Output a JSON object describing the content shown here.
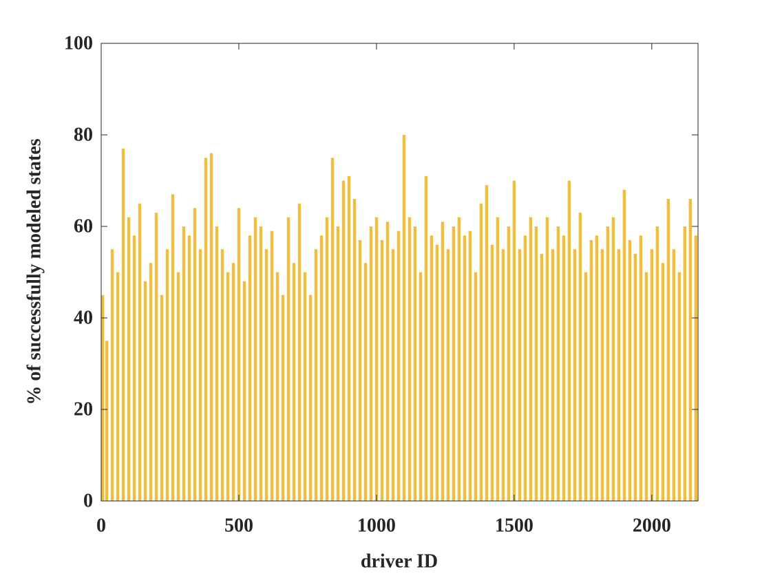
{
  "chart_data": {
    "type": "bar",
    "xlabel": "driver ID",
    "ylabel": "% of successfully modeled states",
    "x": [
      0,
      20,
      40,
      60,
      80,
      100,
      120,
      140,
      160,
      180,
      200,
      220,
      240,
      260,
      280,
      300,
      320,
      340,
      360,
      380,
      400,
      420,
      440,
      460,
      480,
      500,
      520,
      540,
      560,
      580,
      600,
      620,
      640,
      660,
      680,
      700,
      720,
      740,
      760,
      780,
      800,
      820,
      840,
      860,
      880,
      900,
      920,
      940,
      960,
      980,
      1000,
      1020,
      1040,
      1060,
      1080,
      1100,
      1120,
      1140,
      1160,
      1180,
      1200,
      1220,
      1240,
      1260,
      1280,
      1300,
      1320,
      1340,
      1360,
      1380,
      1400,
      1420,
      1440,
      1460,
      1480,
      1500,
      1520,
      1540,
      1560,
      1580,
      1600,
      1620,
      1640,
      1660,
      1680,
      1700,
      1720,
      1740,
      1760,
      1780,
      1800,
      1820,
      1840,
      1860,
      1880,
      1900,
      1920,
      1940,
      1960,
      1980,
      2000,
      2020,
      2040,
      2060,
      2080,
      2100,
      2120,
      2140,
      2160
    ],
    "values": [
      45,
      35,
      55,
      50,
      77,
      62,
      58,
      65,
      48,
      52,
      63,
      45,
      55,
      67,
      50,
      60,
      58,
      64,
      55,
      75,
      76,
      60,
      55,
      50,
      52,
      64,
      48,
      58,
      62,
      60,
      55,
      59,
      50,
      45,
      62,
      52,
      65,
      50,
      45,
      55,
      58,
      62,
      75,
      60,
      70,
      71,
      66,
      57,
      52,
      60,
      62,
      57,
      61,
      55,
      59,
      80,
      62,
      60,
      50,
      71,
      58,
      56,
      61,
      55,
      60,
      62,
      58,
      59,
      50,
      65,
      69,
      56,
      62,
      55,
      60,
      70,
      55,
      58,
      62,
      60,
      54,
      62,
      55,
      60,
      58,
      70,
      55,
      63,
      50,
      57,
      58,
      55,
      60,
      62,
      55,
      68,
      57,
      54,
      58,
      50,
      55,
      60,
      52,
      66,
      55,
      50,
      60,
      66,
      58
    ],
    "color": "#edb120",
    "xlim": [
      0,
      2168
    ],
    "xticks": [
      0,
      500,
      1000,
      1500,
      2000
    ],
    "ylim": [
      0,
      100
    ],
    "yticks": [
      0,
      20,
      40,
      60,
      80,
      100
    ],
    "grid": false
  }
}
